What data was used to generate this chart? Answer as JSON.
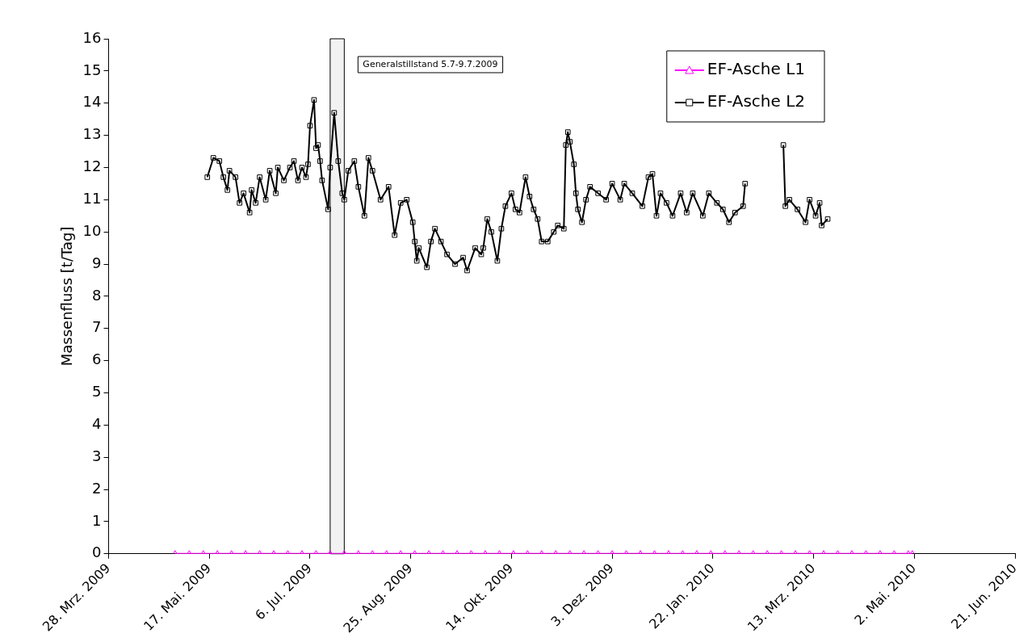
{
  "chart_data": {
    "type": "line",
    "ylabel": "Massenfluss [t/Tag]",
    "xlim": [
      "2009-03-28",
      "2010-06-21"
    ],
    "xticks": [
      {
        "value": "2009-03-28",
        "label": "28. Mrz. 2009"
      },
      {
        "value": "2009-05-17",
        "label": "17. Mai. 2009"
      },
      {
        "value": "2009-07-06",
        "label": "6. Jul. 2009"
      },
      {
        "value": "2009-08-25",
        "label": "25. Aug. 2009"
      },
      {
        "value": "2009-10-14",
        "label": "14. Okt. 2009"
      },
      {
        "value": "2009-12-03",
        "label": "3. Dez. 2009"
      },
      {
        "value": "2010-01-22",
        "label": "22. Jan. 2010"
      },
      {
        "value": "2010-03-13",
        "label": "13. Mrz. 2010"
      },
      {
        "value": "2010-05-02",
        "label": "2. Mai. 2010"
      },
      {
        "value": "2010-06-21",
        "label": "21. Jun. 2010"
      }
    ],
    "ylim": [
      0,
      16
    ],
    "yticks": [
      0,
      1,
      2,
      3,
      4,
      5,
      6,
      7,
      8,
      9,
      10,
      11,
      12,
      13,
      14,
      15,
      16
    ],
    "grid": false,
    "legend": "top right",
    "line_style": "solid",
    "bands": [
      {
        "axis": "x",
        "from": "2009-07-16",
        "to": "2009-07-23",
        "color": "#f2f2f2",
        "label": "Generalstillstand 5.7-9.7.2009"
      }
    ],
    "series": [
      {
        "name": "EF-Asche L1",
        "color": "#ff00ff",
        "marker": "triangle",
        "x": [
          "2009-04-30",
          "2009-05-07",
          "2009-05-14",
          "2009-05-21",
          "2009-05-28",
          "2009-06-04",
          "2009-06-11",
          "2009-06-18",
          "2009-06-25",
          "2009-07-02",
          "2009-07-09",
          "2009-07-16",
          "2009-07-23",
          "2009-07-30",
          "2009-08-06",
          "2009-08-13",
          "2009-08-20",
          "2009-08-27",
          "2009-09-03",
          "2009-09-10",
          "2009-09-17",
          "2009-09-24",
          "2009-10-01",
          "2009-10-08",
          "2009-10-15",
          "2009-10-22",
          "2009-10-29",
          "2009-11-05",
          "2009-11-12",
          "2009-11-19",
          "2009-11-26",
          "2009-12-03",
          "2009-12-10",
          "2009-12-17",
          "2009-12-24",
          "2009-12-31",
          "2010-01-07",
          "2010-01-14",
          "2010-01-21",
          "2010-01-28",
          "2010-02-04",
          "2010-02-11",
          "2010-02-18",
          "2010-02-25",
          "2010-03-04",
          "2010-03-11",
          "2010-03-18",
          "2010-03-25",
          "2010-04-01",
          "2010-04-08",
          "2010-04-15",
          "2010-04-22",
          "2010-04-29",
          "2010-05-01"
        ],
        "values": [
          0,
          0,
          0,
          0,
          0,
          0,
          0,
          0,
          0,
          0,
          0,
          0,
          0,
          0,
          0,
          0,
          0,
          0,
          0,
          0,
          0,
          0,
          0,
          0,
          0,
          0,
          0,
          0,
          0,
          0,
          0,
          0,
          0,
          0,
          0,
          0,
          0,
          0,
          0,
          0,
          0,
          0,
          0,
          0,
          0,
          0,
          0,
          0,
          0,
          0,
          0,
          0,
          0,
          0
        ]
      },
      {
        "name": "EF-Asche L2",
        "color": "#000000",
        "marker": "square",
        "x": [
          "2009-05-16",
          "2009-05-19",
          "2009-05-22",
          "2009-05-24",
          "2009-05-26",
          "2009-05-27",
          "2009-05-30",
          "2009-06-01",
          "2009-06-03",
          "2009-06-06",
          "2009-06-07",
          "2009-06-09",
          "2009-06-11",
          "2009-06-14",
          "2009-06-16",
          "2009-06-19",
          "2009-06-20",
          "2009-06-23",
          "2009-06-26",
          "2009-06-28",
          "2009-06-30",
          "2009-07-02",
          "2009-07-04",
          "2009-07-05",
          "2009-07-06",
          "2009-07-08",
          "2009-07-09",
          "2009-07-10",
          "2009-07-11",
          "2009-07-12",
          "2009-07-15",
          "2009-07-16",
          "2009-07-18",
          "2009-07-20",
          "2009-07-22",
          "2009-07-23",
          "2009-07-25",
          "2009-07-28",
          "2009-07-30",
          "2009-08-02",
          "2009-08-04",
          "2009-08-06",
          "2009-08-10",
          "2009-08-14",
          "2009-08-17",
          "2009-08-20",
          "2009-08-23",
          "2009-08-26",
          "2009-08-27",
          "2009-08-28",
          "2009-08-29",
          "2009-09-02",
          "2009-09-04",
          "2009-09-06",
          "2009-09-09",
          "2009-09-12",
          "2009-09-16",
          "2009-09-20",
          "2009-09-22",
          "2009-09-26",
          "2009-09-29",
          "2009-09-30",
          "2009-10-02",
          "2009-10-04",
          "2009-10-07",
          "2009-10-09",
          "2009-10-11",
          "2009-10-14",
          "2009-10-16",
          "2009-10-18",
          "2009-10-21",
          "2009-10-23",
          "2009-10-25",
          "2009-10-27",
          "2009-10-29",
          "2009-11-01",
          "2009-11-04",
          "2009-11-06",
          "2009-11-09",
          "2009-11-10",
          "2009-11-11",
          "2009-11-12",
          "2009-11-14",
          "2009-11-15",
          "2009-11-16",
          "2009-11-18",
          "2009-11-20",
          "2009-11-22",
          "2009-11-26",
          "2009-11-30",
          "2009-12-03",
          "2009-12-07",
          "2009-12-09",
          "2009-12-13",
          "2009-12-18",
          "2009-12-21",
          "2009-12-23",
          "2009-12-25",
          "2009-12-27",
          "2009-12-30",
          "2010-01-02",
          "2010-01-06",
          "2010-01-09",
          "2010-01-12",
          "2010-01-17",
          "2010-01-20",
          "2010-01-24",
          "2010-01-27",
          "2010-01-30",
          "2010-02-02",
          "2010-02-06",
          "2010-02-07",
          "2010-02-20",
          "2010-02-26",
          "2010-02-27",
          "2010-03-01",
          "2010-03-05",
          "2010-03-09",
          "2010-03-11",
          "2010-03-14",
          "2010-03-16",
          "2010-03-17",
          "2010-03-20"
        ],
        "values": [
          11.7,
          12.3,
          12.2,
          11.7,
          11.3,
          11.9,
          11.7,
          10.9,
          11.2,
          10.6,
          11.3,
          10.9,
          11.7,
          11.0,
          11.9,
          11.2,
          12.0,
          11.6,
          12.0,
          12.2,
          11.6,
          12.0,
          11.7,
          12.1,
          13.3,
          14.1,
          12.6,
          12.7,
          12.2,
          11.6,
          10.7,
          12.0,
          13.7,
          12.2,
          11.2,
          11.0,
          11.9,
          12.2,
          11.4,
          10.5,
          12.3,
          11.9,
          11.0,
          11.4,
          9.9,
          10.9,
          11.0,
          10.3,
          9.7,
          9.1,
          9.5,
          8.9,
          9.7,
          10.1,
          9.7,
          9.3,
          9.0,
          9.2,
          8.8,
          9.5,
          9.3,
          9.5,
          10.4,
          10.0,
          9.1,
          10.1,
          10.8,
          11.2,
          10.7,
          10.6,
          11.7,
          11.1,
          10.7,
          10.4,
          9.7,
          9.7,
          10.0,
          10.2,
          10.1,
          12.7,
          13.1,
          12.8,
          12.1,
          11.2,
          10.7,
          10.3,
          11.0,
          11.4,
          11.2,
          11.0,
          11.5,
          11.0,
          11.5,
          11.2,
          10.8,
          11.7,
          11.8,
          10.5,
          11.2,
          10.9,
          10.5,
          11.2,
          10.6,
          11.2,
          10.5,
          11.2,
          10.9,
          10.7,
          10.3,
          10.6,
          10.8,
          11.5,
          null,
          12.7,
          10.8,
          11.0,
          10.7,
          10.3,
          11.0,
          10.5,
          10.9,
          10.2,
          10.4
        ]
      }
    ]
  }
}
